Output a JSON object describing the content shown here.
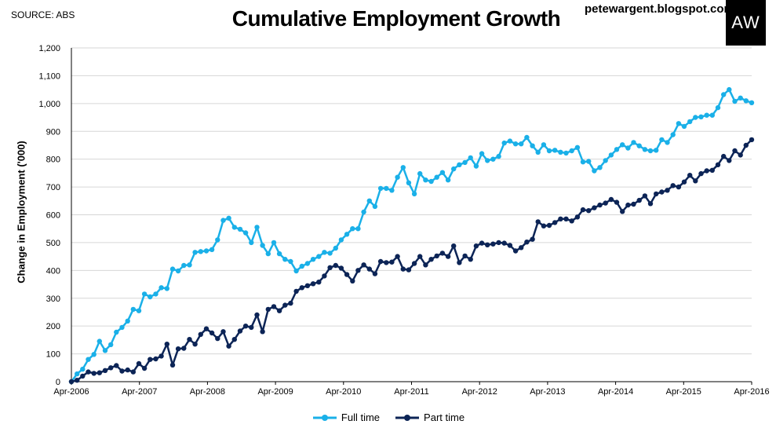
{
  "header": {
    "source": "SOURCE: ABS",
    "blog": "petewargent.blogspot.com",
    "logo": "AW"
  },
  "chart_data": {
    "type": "line",
    "title": "Cumulative Employment Growth",
    "ylabel": "Change in Employment ('000)",
    "xlabel": "",
    "ylim": [
      0,
      1200
    ],
    "yticks": [
      0,
      100,
      200,
      300,
      400,
      500,
      600,
      700,
      800,
      900,
      1000,
      1100,
      1200
    ],
    "ytick_labels": [
      "0",
      "100",
      "200",
      "300",
      "400",
      "500",
      "600",
      "700",
      "800",
      "900",
      "1,000",
      "1,100",
      "1,200"
    ],
    "x_start": "Apr-2006",
    "x_end": "Apr-2016",
    "xtick_labels": [
      "Apr-2006",
      "Apr-2007",
      "Apr-2008",
      "Apr-2009",
      "Apr-2010",
      "Apr-2011",
      "Apr-2012",
      "Apr-2013",
      "Apr-2014",
      "Apr-2015",
      "Apr-2016"
    ],
    "grid": true,
    "legend_position": "bottom",
    "series": [
      {
        "name": "Full time",
        "color": "#1ab0e8",
        "values": [
          0,
          28,
          45,
          80,
          98,
          145,
          112,
          133,
          178,
          195,
          218,
          260,
          255,
          315,
          305,
          315,
          338,
          335,
          405,
          398,
          418,
          420,
          465,
          468,
          470,
          475,
          510,
          580,
          588,
          555,
          548,
          535,
          500,
          555,
          490,
          460,
          500,
          460,
          440,
          432,
          398,
          415,
          425,
          440,
          450,
          465,
          462,
          480,
          510,
          530,
          550,
          550,
          610,
          650,
          630,
          695,
          695,
          688,
          735,
          770,
          715,
          675,
          748,
          725,
          720,
          735,
          752,
          725,
          765,
          780,
          788,
          805,
          775,
          820,
          795,
          800,
          810,
          858,
          865,
          855,
          855,
          878,
          848,
          825,
          852,
          830,
          832,
          825,
          822,
          830,
          842,
          790,
          792,
          758,
          770,
          795,
          815,
          835,
          852,
          840,
          860,
          848,
          835,
          830,
          832,
          870,
          860,
          888,
          928,
          918,
          935,
          950,
          952,
          958,
          958,
          985,
          1032,
          1050,
          1008,
          1020,
          1010,
          1003
        ]
      },
      {
        "name": "Part time",
        "color": "#0c2456",
        "values": [
          0,
          5,
          20,
          35,
          30,
          32,
          40,
          50,
          58,
          38,
          42,
          35,
          65,
          48,
          80,
          82,
          92,
          135,
          60,
          118,
          120,
          152,
          135,
          170,
          190,
          175,
          155,
          180,
          128,
          152,
          182,
          200,
          195,
          240,
          180,
          260,
          270,
          255,
          275,
          282,
          325,
          338,
          345,
          352,
          358,
          380,
          410,
          418,
          408,
          385,
          362,
          400,
          420,
          405,
          388,
          432,
          428,
          430,
          450,
          405,
          402,
          425,
          450,
          420,
          440,
          452,
          462,
          450,
          488,
          428,
          452,
          440,
          488,
          498,
          492,
          495,
          500,
          498,
          490,
          470,
          482,
          502,
          512,
          575,
          560,
          562,
          572,
          585,
          585,
          578,
          592,
          618,
          615,
          625,
          635,
          642,
          655,
          645,
          612,
          635,
          638,
          652,
          668,
          640,
          675,
          682,
          688,
          705,
          700,
          718,
          742,
          722,
          748,
          758,
          760,
          780,
          810,
          795,
          830,
          815,
          850,
          870
        ]
      }
    ]
  }
}
